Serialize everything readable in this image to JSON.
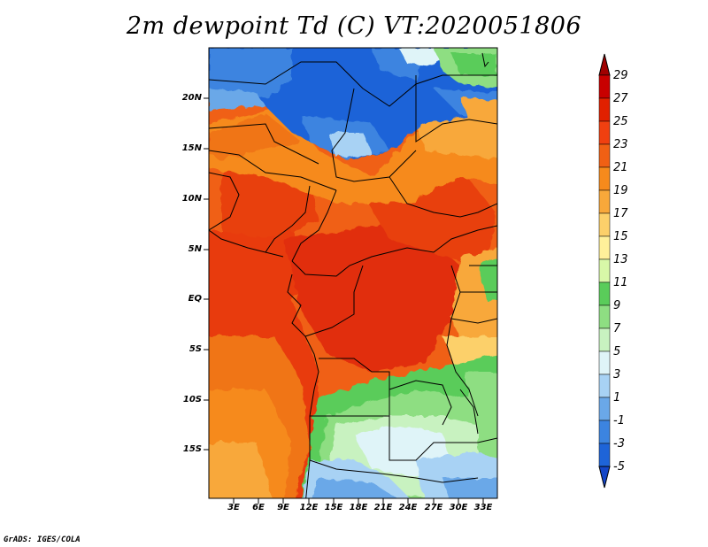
{
  "title": "2m dewpoint Td (C) VT:2020051806",
  "credit": "GrADS: IGES/COLA",
  "y_axis_labels": [
    "20N",
    "15N",
    "10N",
    "5N",
    "EQ",
    "5S",
    "10S",
    "15S"
  ],
  "x_axis_labels": [
    "3E",
    "6E",
    "9E",
    "12E",
    "15E",
    "18E",
    "21E",
    "24E",
    "27E",
    "30E",
    "33E"
  ],
  "colorbar": {
    "labels": [
      "29",
      "27",
      "25",
      "23",
      "21",
      "19",
      "17",
      "15",
      "13",
      "11",
      "9",
      "7",
      "5",
      "3",
      "1",
      "-1",
      "-3",
      "-5"
    ],
    "colors": [
      "#a00000",
      "#c80000",
      "#e12000",
      "#f04010",
      "#f06014",
      "#f68a1c",
      "#f8a83a",
      "#fcd06a",
      "#fff09a",
      "#d8f8a8",
      "#5acc5a",
      "#8ede82",
      "#c8f2c0",
      "#dff4f8",
      "#a8d2f4",
      "#6aa8e8",
      "#3c84e0",
      "#1e64d8",
      "#1446c8"
    ]
  },
  "map": {
    "region": "Central Africa",
    "variable": "2m dewpoint",
    "units": "C"
  }
}
